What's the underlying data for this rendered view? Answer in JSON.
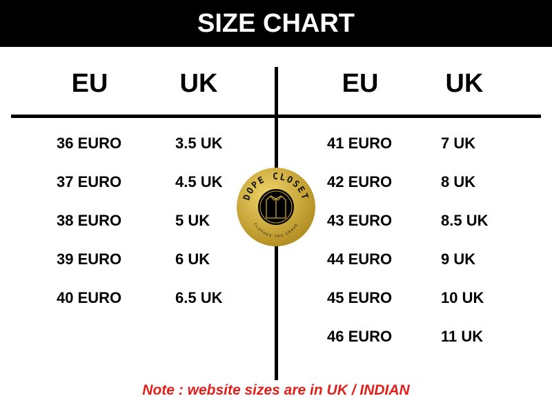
{
  "title": "SIZE CHART",
  "left": {
    "headers": [
      "EU",
      "UK"
    ],
    "rows": [
      [
        "36 EURO",
        "3.5 UK"
      ],
      [
        "37 EURO",
        "4.5 UK"
      ],
      [
        "38 EURO",
        "5 UK"
      ],
      [
        "39 EURO",
        "6 UK"
      ],
      [
        "40 EURO",
        "6.5 UK"
      ]
    ]
  },
  "right": {
    "headers": [
      "EU",
      "UK"
    ],
    "rows": [
      [
        "41 EURO",
        "7 UK"
      ],
      [
        "42 EURO",
        "8 UK"
      ],
      [
        "43 EURO",
        "8.5 UK"
      ],
      [
        "44 EURO",
        "9 UK"
      ],
      [
        "45 EURO",
        "10 UK"
      ],
      [
        "46 EURO",
        "11 UK"
      ]
    ]
  },
  "logo": {
    "name": "DOPE CLOSET",
    "tagline": "CLOTHES YOU CRAVE"
  },
  "note": "Note : website sizes are in UK / INDIAN",
  "colors": {
    "note": "#e0201b",
    "logo_gold": "#c9a535"
  }
}
